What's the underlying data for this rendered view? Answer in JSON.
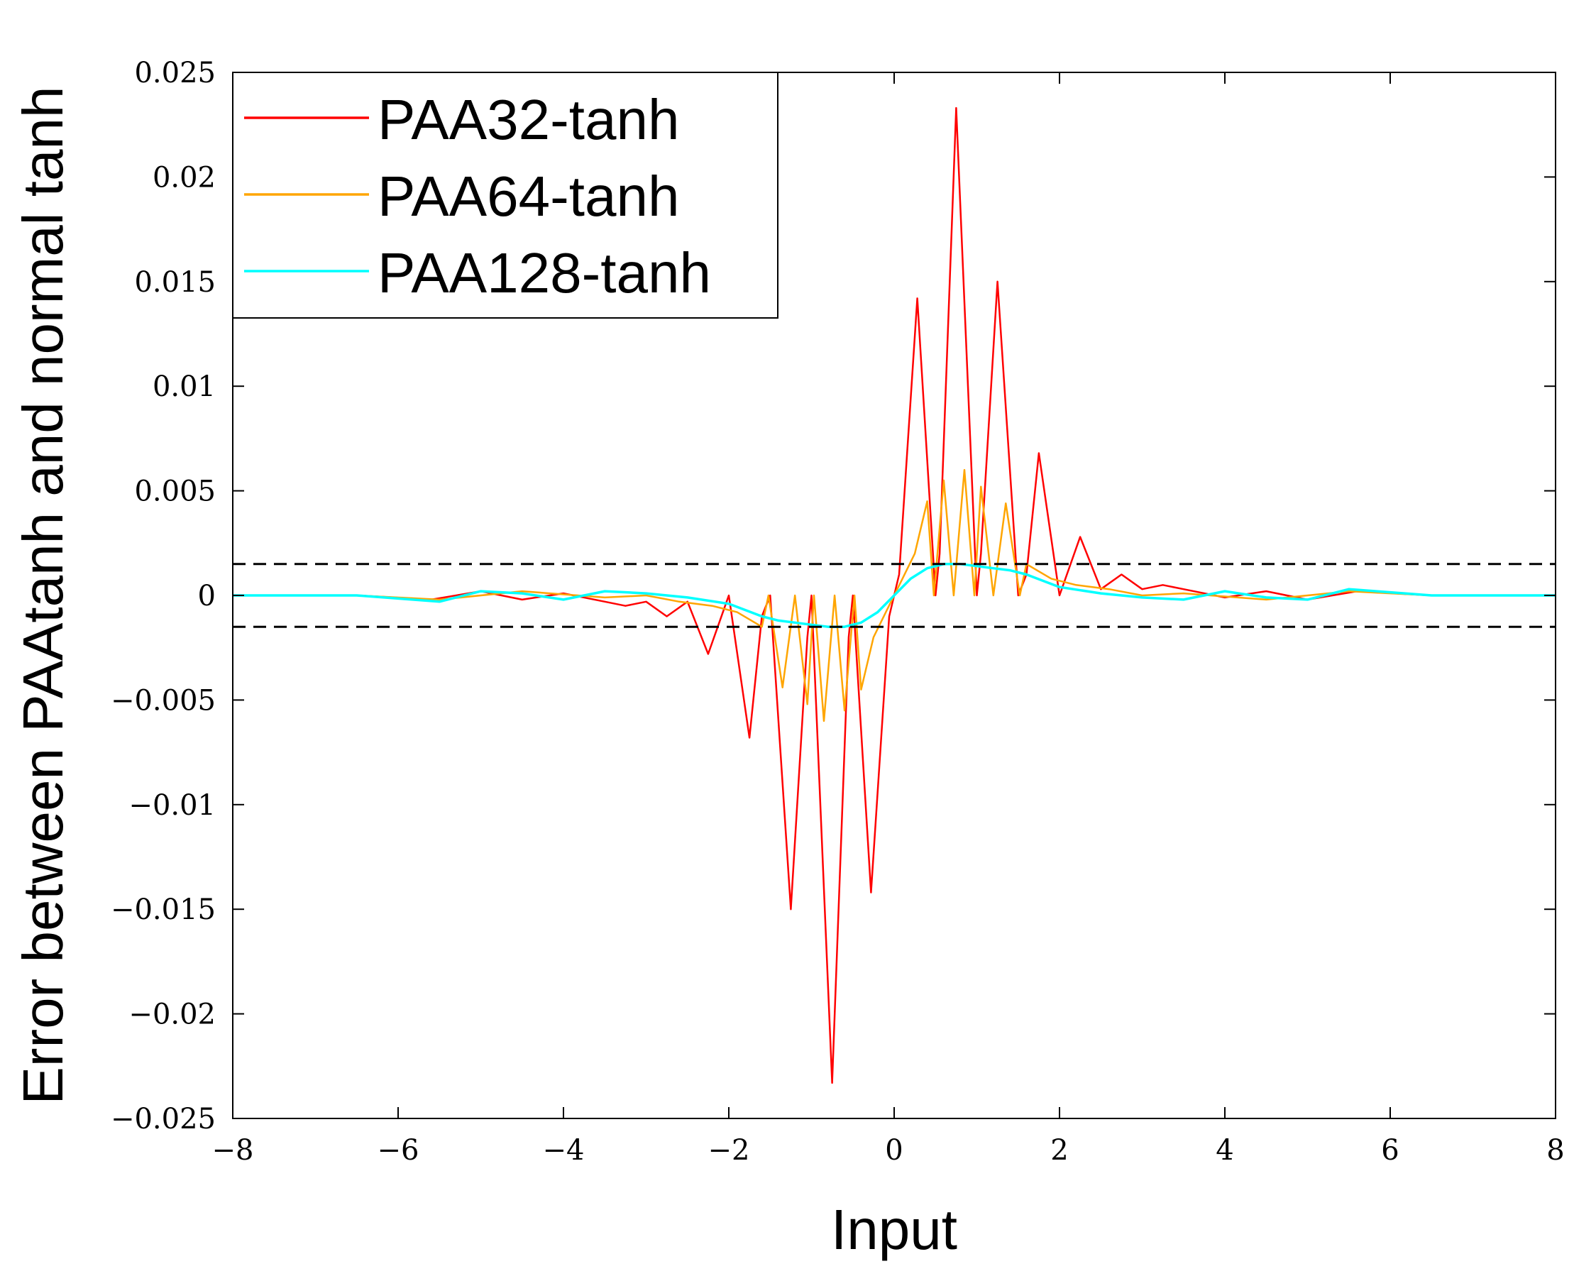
{
  "chart_data": {
    "type": "line",
    "title": "",
    "xlabel": "Input",
    "ylabel": "Error between PAAtanh and normal tanh",
    "xlim": [
      -8,
      8
    ],
    "ylim": [
      -0.025,
      0.025
    ],
    "xticks": [
      -8,
      -6,
      -4,
      -2,
      0,
      2,
      4,
      6,
      8
    ],
    "xtick_labels": [
      "−8",
      "−6",
      "−4",
      "−2",
      "0",
      "2",
      "4",
      "6",
      "8"
    ],
    "yticks": [
      0.025,
      0.02,
      0.015,
      0.01,
      0.005,
      0,
      -0.005,
      -0.01,
      -0.015,
      -0.02,
      -0.025
    ],
    "ytick_labels": [
      "0.025",
      "0.02",
      "0.015",
      "0.01",
      "0.005",
      "0",
      "−0.005",
      "−0.01",
      "−0.015",
      "−0.02",
      "−0.025"
    ],
    "grid": false,
    "legend_position": "top-left",
    "threshold_lines": [
      {
        "y": 0.0015,
        "style": "dashed",
        "color": "#000000"
      },
      {
        "y": -0.0015,
        "style": "dashed",
        "color": "#000000"
      }
    ],
    "series": [
      {
        "name": "PAA32-tanh",
        "color": "#ff0000",
        "x": [
          -8,
          -6.5,
          -5.6,
          -5.0,
          -4.5,
          -4.0,
          -3.5,
          -3.25,
          -3.0,
          -2.75,
          -2.5,
          -2.25,
          -2.0,
          -1.75,
          -1.6,
          -1.5,
          -1.25,
          -1.05,
          -1.0,
          -0.75,
          -0.55,
          -0.5,
          -0.28,
          -0.06,
          0,
          0.06,
          0.28,
          0.5,
          0.55,
          0.75,
          1.0,
          1.05,
          1.25,
          1.5,
          1.6,
          1.75,
          2.0,
          2.25,
          2.5,
          2.75,
          3.0,
          3.25,
          3.5,
          4.0,
          4.5,
          5.0,
          5.6,
          6.5,
          8
        ],
        "y": [
          0,
          0,
          -0.0002,
          0.0002,
          -0.0002,
          0.0001,
          -0.0003,
          -0.0005,
          -0.0003,
          -0.001,
          -0.0003,
          -0.0028,
          0,
          -0.0068,
          -0.001,
          0,
          -0.015,
          -0.002,
          0,
          -0.0233,
          -0.002,
          0,
          -0.0142,
          -0.001,
          0,
          0.001,
          0.0142,
          0,
          0.002,
          0.0233,
          0,
          0.002,
          0.015,
          0,
          0.001,
          0.0068,
          0,
          0.0028,
          0.0003,
          0.001,
          0.0003,
          0.0005,
          0.0003,
          -0.0001,
          0.0002,
          -0.0002,
          0.0002,
          0,
          0
        ]
      },
      {
        "name": "PAA64-tanh",
        "color": "#ffa500",
        "x": [
          -8,
          -6.5,
          -5.5,
          -4.5,
          -3.5,
          -3.0,
          -2.6,
          -2.2,
          -1.9,
          -1.6,
          -1.52,
          -1.35,
          -1.2,
          -1.05,
          -0.97,
          -0.85,
          -0.72,
          -0.6,
          -0.48,
          -0.4,
          -0.25,
          -0.1,
          0,
          0.1,
          0.25,
          0.4,
          0.48,
          0.6,
          0.72,
          0.85,
          0.97,
          1.05,
          1.2,
          1.35,
          1.52,
          1.6,
          1.9,
          2.2,
          2.6,
          3.0,
          3.5,
          4.5,
          5.5,
          6.5,
          8
        ],
        "y": [
          0,
          0,
          -0.0002,
          0.0002,
          -0.0001,
          0,
          -0.0003,
          -0.0005,
          -0.0008,
          -0.0015,
          0,
          -0.0044,
          0,
          -0.0052,
          0,
          -0.006,
          0,
          -0.0055,
          0,
          -0.0045,
          -0.002,
          -0.0008,
          0,
          0.0008,
          0.002,
          0.0045,
          0,
          0.0055,
          0,
          0.006,
          0,
          0.0052,
          0,
          0.0044,
          0,
          0.0015,
          0.0008,
          0.0005,
          0.0003,
          0,
          0.0001,
          -0.0002,
          0.0002,
          0,
          0
        ]
      },
      {
        "name": "PAA128-tanh",
        "color": "#00ffff",
        "x": [
          -8,
          -6.5,
          -5.5,
          -5.0,
          -4.5,
          -4.0,
          -3.5,
          -3.0,
          -2.5,
          -2.0,
          -1.8,
          -1.6,
          -1.4,
          -1.2,
          -1.0,
          -0.8,
          -0.6,
          -0.4,
          -0.2,
          0,
          0.2,
          0.4,
          0.6,
          0.8,
          1.0,
          1.2,
          1.4,
          1.6,
          1.8,
          2.0,
          2.5,
          3.0,
          3.5,
          4.0,
          4.5,
          5.0,
          5.5,
          6.5,
          8
        ],
        "y": [
          0,
          0,
          -0.0003,
          0.0002,
          0.0001,
          -0.0002,
          0.0002,
          0.0001,
          -0.0001,
          -0.0004,
          -0.0007,
          -0.001,
          -0.0012,
          -0.0013,
          -0.0014,
          -0.0015,
          -0.0015,
          -0.0013,
          -0.0008,
          0,
          0.0008,
          0.0013,
          0.0015,
          0.0015,
          0.0014,
          0.0013,
          0.0012,
          0.001,
          0.0007,
          0.0004,
          0.0001,
          -0.0001,
          -0.0002,
          0.0002,
          -0.0001,
          -0.0002,
          0.0003,
          0,
          0
        ]
      }
    ]
  }
}
